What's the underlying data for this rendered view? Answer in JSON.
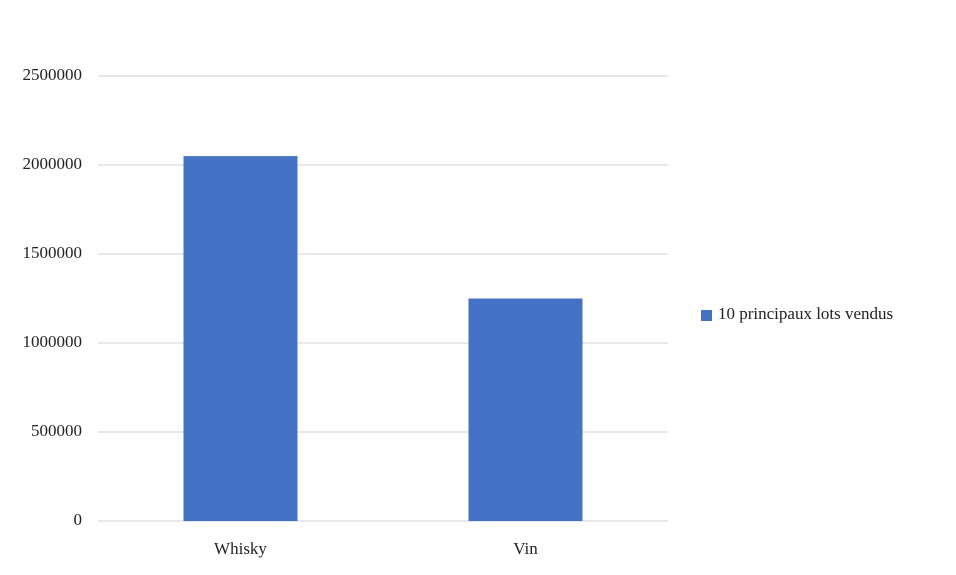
{
  "chart_data": {
    "type": "bar",
    "categories": [
      "Whisky",
      "Vin"
    ],
    "series": [
      {
        "name": "10 principaux lots vendus",
        "color": "#4472c4",
        "values": [
          2050000,
          1250000
        ]
      }
    ],
    "ylim": [
      0,
      2500000
    ],
    "yticks": [
      0,
      500000,
      1000000,
      1500000,
      2000000,
      2500000
    ],
    "grid": true,
    "legend": "right"
  }
}
